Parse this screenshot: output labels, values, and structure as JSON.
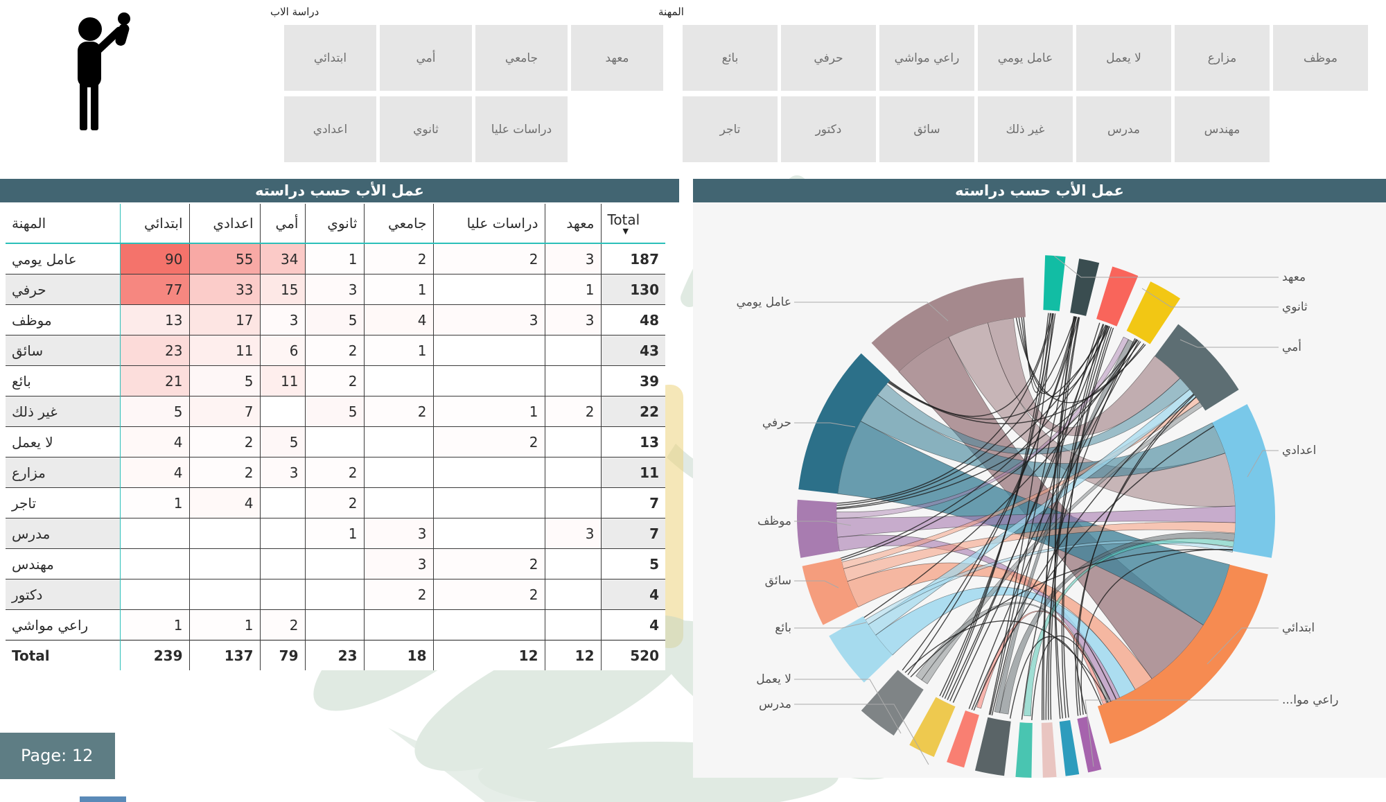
{
  "page": {
    "label": "Page: 12"
  },
  "slicers": {
    "father_education": {
      "title": "دراسة الاب",
      "options": [
        "ابتدائي",
        "أمي",
        "جامعي",
        "معهد",
        "اعدادي",
        "ثانوي",
        "دراسات عليا"
      ]
    },
    "occupation": {
      "title": "المهنة",
      "options": [
        "بائع",
        "حرفي",
        "راعي مواشي",
        "عامل يومي",
        "لا يعمل",
        "مزارع",
        "موظف",
        "تاجر",
        "دكتور",
        "سائق",
        "غير ذلك",
        "مدرس",
        "مهندس"
      ]
    }
  },
  "matrix": {
    "title": "عمل الأب حسب دراسته",
    "columns": [
      "المهنة",
      "ابتدائي",
      "اعدادي",
      "أمي",
      "ثانوي",
      "جامعي",
      "دراسات عليا",
      "معهد",
      "Total"
    ],
    "sort_indicator": "▼",
    "rows": [
      {
        "label": "عامل يومي",
        "values": [
          90,
          55,
          34,
          1,
          2,
          2,
          3
        ],
        "total": 187
      },
      {
        "label": "حرفي",
        "values": [
          77,
          33,
          15,
          3,
          1,
          null,
          1
        ],
        "total": 130
      },
      {
        "label": "موظف",
        "values": [
          13,
          17,
          3,
          5,
          4,
          3,
          3
        ],
        "total": 48
      },
      {
        "label": "سائق",
        "values": [
          23,
          11,
          6,
          2,
          1,
          null,
          null
        ],
        "total": 43
      },
      {
        "label": "بائع",
        "values": [
          21,
          5,
          11,
          2,
          null,
          null,
          null
        ],
        "total": 39
      },
      {
        "label": "غير ذلك",
        "values": [
          5,
          7,
          null,
          5,
          2,
          1,
          2
        ],
        "total": 22
      },
      {
        "label": "لا يعمل",
        "values": [
          4,
          2,
          5,
          null,
          null,
          2,
          null
        ],
        "total": 13
      },
      {
        "label": "مزارع",
        "values": [
          4,
          2,
          3,
          2,
          null,
          null,
          null
        ],
        "total": 11
      },
      {
        "label": "تاجر",
        "values": [
          1,
          4,
          null,
          2,
          null,
          null,
          null
        ],
        "total": 7
      },
      {
        "label": "مدرس",
        "values": [
          null,
          null,
          null,
          1,
          3,
          null,
          3
        ],
        "total": 7
      },
      {
        "label": "مهندس",
        "values": [
          null,
          null,
          null,
          null,
          3,
          2,
          null
        ],
        "total": 5
      },
      {
        "label": "دكتور",
        "values": [
          null,
          null,
          null,
          null,
          2,
          2,
          null
        ],
        "total": 4
      },
      {
        "label": "راعي مواشي",
        "values": [
          1,
          1,
          2,
          null,
          null,
          null,
          null
        ],
        "total": 4
      }
    ],
    "total_row": {
      "label": "Total",
      "values": [
        239,
        137,
        79,
        23,
        18,
        12,
        12
      ],
      "total": 520
    },
    "heat_max": 90,
    "heat_color": "#f4736b"
  },
  "chord": {
    "title": "عمل الأب حسب دراسته",
    "labels": {
      "institute": "معهد",
      "secondary": "ثانوي",
      "illiterate": "أمي",
      "middle": "اعدادي",
      "primary": "ابتدائي",
      "herder_trunc": "...راعي موا",
      "daily_worker": "عامل يومي",
      "craftsman": "حرفي",
      "employee": "موظف",
      "driver": "سائق",
      "seller": "بائع",
      "unemployed": "لا يعمل",
      "teacher": "مدرس"
    },
    "arcs": [
      {
        "id": "institute",
        "a": [
          2,
          6.5
        ],
        "color": "#12bda4",
        "small": true
      },
      {
        "id": "postgrad",
        "a": [
          9.5,
          14
        ],
        "color": "#3a4d50",
        "small": true
      },
      {
        "id": "university",
        "a": [
          17,
          23
        ],
        "color": "#f9655b",
        "small": true
      },
      {
        "id": "secondary",
        "a": [
          26,
          33.5
        ],
        "color": "#f2c714",
        "small": true
      },
      {
        "id": "illiterate",
        "a": [
          36.5,
          58
        ],
        "color": "#5d6e73",
        "small": false
      },
      {
        "id": "middle",
        "a": [
          62,
          100
        ],
        "color": "#79c8e9",
        "small": false
      },
      {
        "id": "primary",
        "a": [
          104,
          162
        ],
        "color": "#f68b51",
        "small": false
      },
      {
        "id": "herder",
        "a": [
          165.5,
          168.5
        ],
        "color": "#a663ad",
        "small": true
      },
      {
        "id": "doctor",
        "a": [
          170.5,
          173.5
        ],
        "color": "#2d9cbd",
        "small": true
      },
      {
        "id": "engineer",
        "a": [
          175.5,
          178.5
        ],
        "color": "#e9c5c1",
        "small": true
      },
      {
        "id": "merchant",
        "a": [
          181,
          184.5
        ],
        "color": "#49c5b1",
        "small": true
      },
      {
        "id": "other",
        "a": [
          187,
          193.5
        ],
        "color": "#5a6467",
        "small": true
      },
      {
        "id": "farmer",
        "a": [
          196,
          200
        ],
        "color": "#f97f72",
        "small": true
      },
      {
        "id": "teacher",
        "a": [
          203,
          209
        ],
        "color": "#eec94f",
        "small": true
      },
      {
        "id": "unemployed",
        "a": [
          213,
          222
        ],
        "color": "#7f8486",
        "small": true
      },
      {
        "id": "seller",
        "a": [
          226,
          240
        ],
        "color": "#a6dbee",
        "small": false
      },
      {
        "id": "driver",
        "a": [
          243,
          258
        ],
        "color": "#f59d7d",
        "small": false
      },
      {
        "id": "employee",
        "a": [
          260,
          274
        ],
        "color": "#a87cb0",
        "small": false
      },
      {
        "id": "craftsman",
        "a": [
          276.5,
          313
        ],
        "color": "#2c7089",
        "small": false
      },
      {
        "id": "daily_worker",
        "a": [
          316.5,
          357
        ],
        "color": "#a5898d",
        "small": false
      }
    ],
    "ribbons": [
      [
        316.5,
        334,
        123,
        144.5,
        "#a08084",
        0.8
      ],
      [
        334,
        346,
        71.5,
        87,
        "#a08084",
        0.55
      ],
      [
        346,
        353.5,
        36.5,
        46.2,
        "#a08084",
        0.62
      ],
      [
        276.5,
        298.5,
        104,
        123,
        "#40839a",
        0.78
      ],
      [
        298.5,
        307.5,
        62,
        71.5,
        "#40839a",
        0.6
      ],
      [
        307.5,
        311.5,
        46.2,
        50.4,
        "#40839a",
        0.5
      ],
      [
        260,
        264,
        155.2,
        158.3,
        "#a87cb0",
        0.6
      ],
      [
        264,
        269.5,
        87,
        91.8,
        "#a87cb0",
        0.6
      ],
      [
        269.5,
        271.3,
        26,
        27.6,
        "#a87cb0",
        0.45
      ],
      [
        243,
        251,
        144.5,
        150.2,
        "#f59d7d",
        0.7
      ],
      [
        251,
        254.8,
        91.8,
        94.8,
        "#f59d7d",
        0.55
      ],
      [
        254.8,
        256.8,
        53.4,
        55.1,
        "#f59d7d",
        0.5
      ],
      [
        226,
        233.5,
        150.2,
        155.2,
        "#9fd8ee",
        0.85
      ],
      [
        233.5,
        237.2,
        50.4,
        53.4,
        "#9fd8ee",
        0.7
      ],
      [
        237.2,
        238.8,
        99,
        100.3,
        "#9fd8ee",
        0.5
      ],
      [
        213,
        215,
        55.1,
        56.5,
        "#8a8f91",
        0.55
      ],
      [
        215,
        217,
        158.5,
        159.2,
        "#8a8f91",
        0.55
      ],
      [
        188,
        190.5,
        95,
        97,
        "#5a6467",
        0.5
      ],
      [
        190.5,
        192,
        27.6,
        29.2,
        "#5a6467",
        0.5
      ],
      [
        196,
        197.3,
        159.3,
        160.4,
        "#f97f72",
        0.55
      ],
      [
        181.5,
        183.5,
        97.2,
        98.8,
        "#49c5b1",
        0.5
      ]
    ],
    "strands": [
      [
        354.2,
        32
      ],
      [
        355,
        20.8
      ],
      [
        355.8,
        11
      ],
      [
        356.4,
        4
      ],
      [
        312,
        32.5
      ],
      [
        312.6,
        4.2
      ],
      [
        312.3,
        20.4
      ],
      [
        272,
        30
      ],
      [
        272.3,
        20
      ],
      [
        273,
        11
      ],
      [
        273.6,
        4.8
      ],
      [
        257.2,
        30.9
      ],
      [
        257.8,
        21.2
      ],
      [
        239.5,
        29.8
      ],
      [
        218,
        99.6
      ],
      [
        219,
        11.5
      ],
      [
        220,
        158.7
      ],
      [
        221,
        12
      ],
      [
        204,
        29.5
      ],
      [
        205,
        19.2
      ],
      [
        205.8,
        20.6
      ],
      [
        206.6,
        3.5
      ],
      [
        207.4,
        4.6
      ],
      [
        208.2,
        5.4
      ],
      [
        187.3,
        160.8
      ],
      [
        192.5,
        18.2
      ],
      [
        193,
        11.2
      ],
      [
        193.3,
        4.9
      ],
      [
        197.8,
        63
      ],
      [
        198.4,
        52.1
      ],
      [
        199.2,
        30.4
      ],
      [
        181.2,
        157.9
      ],
      [
        184,
        29.1
      ],
      [
        175.8,
        20.2
      ],
      [
        176.5,
        19.4
      ],
      [
        177.2,
        21.1
      ],
      [
        177.8,
        11.3
      ],
      [
        178.3,
        12.1
      ],
      [
        170.8,
        21.7
      ],
      [
        171.6,
        22.3
      ],
      [
        172.5,
        10.7
      ],
      [
        173.2,
        12.3
      ],
      [
        165.8,
        156.3
      ],
      [
        166.6,
        99.4
      ],
      [
        167.4,
        52.3
      ],
      [
        168.1,
        53.1
      ]
    ]
  },
  "colors": {
    "title_bar": "#426572",
    "page_badge": "#5e7d84",
    "slicer_button": "#e6e6e6",
    "table_accent": "#2bbfb9",
    "heat": "#f4736b",
    "chord_panel_bg": "#f6f6f6"
  }
}
